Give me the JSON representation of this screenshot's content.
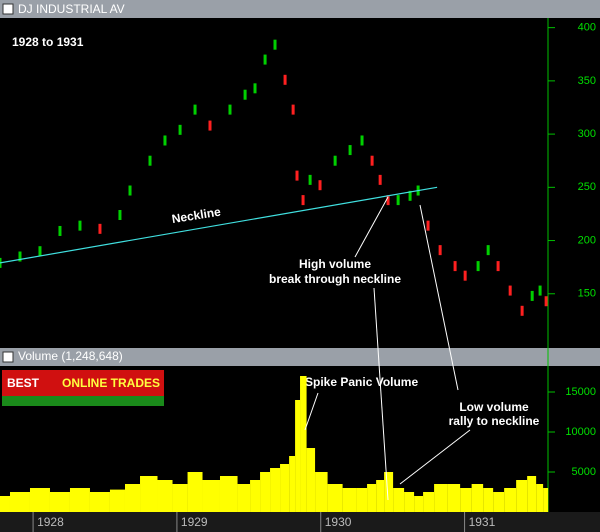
{
  "logo": {
    "bold": "BEST",
    "text": "ONLINE TRADES"
  },
  "chart_data": [
    {
      "type": "scatter",
      "title": "DJ INDUSTRIAL AV",
      "annotations": {
        "period": "1928 to 1931",
        "neckline": "Neckline",
        "break": [
          "High volume",
          "break through neckline"
        ],
        "rally": [
          "Low volume",
          "rally to neckline"
        ]
      },
      "x": [
        1927.77,
        1927.909,
        1928.048,
        1928.187,
        1928.326,
        1928.465,
        1928.604,
        1928.674,
        1928.813,
        1928.917,
        1929.022,
        1929.126,
        1929.23,
        1929.369,
        1929.474,
        1929.543,
        1929.613,
        1929.682,
        1929.752,
        1929.808,
        1929.835,
        1929.877,
        1929.926,
        1929.995,
        1930.1,
        1930.204,
        1930.287,
        1930.357,
        1930.413,
        1930.468,
        1930.538,
        1930.621,
        1930.677,
        1930.746,
        1930.83,
        1930.934,
        1931.004,
        1931.094,
        1931.164,
        1931.233,
        1931.317,
        1931.4,
        1931.47,
        1931.525,
        1931.567
      ],
      "values": [
        179,
        185,
        190,
        209,
        214,
        211,
        224,
        247,
        275,
        294,
        304,
        323,
        308,
        323,
        337,
        343,
        370,
        384,
        351,
        323,
        261,
        238,
        257,
        252,
        275,
        285,
        294,
        275,
        257,
        238,
        238,
        242,
        247,
        214,
        191,
        176,
        167,
        176,
        191,
        176,
        153,
        134,
        148,
        153,
        143
      ],
      "up_color": "#00d000",
      "down_color": "#ff2020",
      "neckline": {
        "x": [
          1927.77,
          1930.809
        ],
        "values": [
          179,
          250
        ],
        "color": "#40e0e0"
      },
      "xlim": [
        1927.77,
        1931.58
      ],
      "ylim": [
        100,
        410
      ],
      "yticks": [
        150,
        200,
        250,
        300,
        350,
        400
      ]
    },
    {
      "type": "bar",
      "title": "Volume (1,248,648)",
      "annotation": "Spike Panic Volume",
      "x": [
        1927.77,
        1927.909,
        1928.048,
        1928.187,
        1928.326,
        1928.465,
        1928.604,
        1928.674,
        1928.813,
        1928.917,
        1929.022,
        1929.126,
        1929.23,
        1929.369,
        1929.474,
        1929.543,
        1929.613,
        1929.682,
        1929.752,
        1929.808,
        1929.835,
        1929.877,
        1929.926,
        1929.995,
        1930.1,
        1930.204,
        1930.287,
        1930.357,
        1930.413,
        1930.468,
        1930.538,
        1930.621,
        1930.677,
        1930.746,
        1930.83,
        1930.934,
        1931.004,
        1931.094,
        1931.164,
        1931.233,
        1931.317,
        1931.4,
        1931.47,
        1931.525,
        1931.567
      ],
      "values": [
        2000,
        2500,
        3000,
        2500,
        3000,
        2500,
        2800,
        3500,
        4500,
        4000,
        3500,
        5000,
        4000,
        4500,
        3500,
        4000,
        5000,
        5500,
        6000,
        7000,
        14000,
        17000,
        8000,
        5000,
        3500,
        3000,
        3000,
        3500,
        4000,
        5000,
        3000,
        2500,
        2000,
        2500,
        3500,
        3500,
        3000,
        3500,
        3000,
        2500,
        3000,
        4000,
        4500,
        3500,
        3000
      ],
      "color": "#ffff00",
      "xlim": [
        1927.77,
        1931.58
      ],
      "ylim": [
        0,
        18000
      ],
      "yticks": [
        5000,
        10000,
        15000
      ],
      "xticks": [
        1928,
        1929,
        1930,
        1931
      ]
    }
  ]
}
